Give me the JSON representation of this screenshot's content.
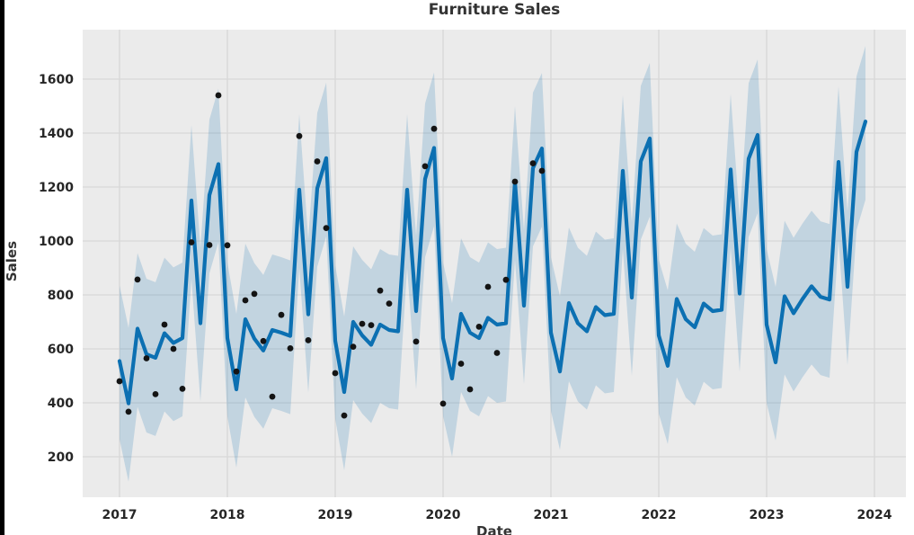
{
  "page": {
    "background": "#ffffff",
    "left_edge_bar_color": "#000000"
  },
  "chart_data": {
    "type": "line",
    "title": "Furniture Sales",
    "xlabel": "Date",
    "ylabel": "Sales",
    "x_tick_labels": [
      "2017",
      "2018",
      "2019",
      "2020",
      "2021",
      "2022",
      "2023",
      "2024"
    ],
    "y_tick_values": [
      200,
      400,
      600,
      800,
      1000,
      1200,
      1400,
      1600
    ],
    "ylim": [
      50,
      1780
    ],
    "grid": true,
    "legend": false,
    "plot_bg_color": "#ebebeb",
    "grid_color": "#d8d8d8",
    "x_start_month": "2017-01",
    "x_step": "1 month",
    "series": [
      {
        "name": "uncertainty-band",
        "type": "band",
        "fill_color": "rgba(12,112,178,0.18)",
        "upper": [
          835,
          678,
          955,
          860,
          847,
          938,
          902,
          920,
          1430,
          975,
          1450,
          1565,
          920,
          730,
          990,
          918,
          874,
          950,
          940,
          928,
          1470,
          1008,
          1475,
          1587,
          910,
          720,
          980,
          930,
          895,
          970,
          950,
          945,
          1470,
          1020,
          1510,
          1625,
          920,
          770,
          1010,
          940,
          920,
          995,
          970,
          975,
          1500,
          1040,
          1550,
          1623,
          940,
          796,
          1050,
          975,
          945,
          1035,
          1005,
          1010,
          1540,
          1070,
          1575,
          1660,
          930,
          817,
          1065,
          990,
          960,
          1048,
          1020,
          1025,
          1545,
          1085,
          1585,
          1673,
          970,
          830,
          1075,
          1012,
          1065,
          1112,
          1073,
          1063,
          1573,
          1110,
          1610,
          1723
        ],
        "lower": [
          265,
          108,
          385,
          290,
          277,
          368,
          332,
          350,
          860,
          405,
          880,
          995,
          350,
          160,
          420,
          348,
          304,
          380,
          370,
          358,
          900,
          438,
          905,
          1017,
          340,
          150,
          410,
          360,
          325,
          400,
          380,
          375,
          900,
          450,
          940,
          1055,
          350,
          200,
          440,
          370,
          350,
          425,
          400,
          405,
          930,
          470,
          980,
          1053,
          370,
          226,
          480,
          405,
          375,
          465,
          435,
          440,
          970,
          500,
          1005,
          1090,
          360,
          247,
          495,
          420,
          390,
          478,
          450,
          455,
          975,
          515,
          1015,
          1103,
          400,
          260,
          505,
          442,
          495,
          542,
          503,
          493,
          1003,
          540,
          1040,
          1153
        ]
      },
      {
        "name": "forecast-line",
        "type": "line",
        "color": "#0c70b2",
        "values": [
          555,
          398,
          675,
          580,
          567,
          658,
          622,
          640,
          1150,
          695,
          1170,
          1285,
          640,
          450,
          710,
          638,
          594,
          670,
          660,
          648,
          1190,
          728,
          1195,
          1307,
          630,
          440,
          700,
          650,
          615,
          690,
          670,
          665,
          1190,
          740,
          1230,
          1345,
          640,
          490,
          730,
          660,
          640,
          715,
          690,
          695,
          1220,
          760,
          1270,
          1343,
          660,
          516,
          770,
          695,
          665,
          755,
          725,
          730,
          1260,
          790,
          1295,
          1380,
          650,
          537,
          785,
          710,
          680,
          768,
          740,
          745,
          1265,
          805,
          1305,
          1393,
          690,
          550,
          795,
          732,
          785,
          832,
          793,
          783,
          1293,
          830,
          1330,
          1443
        ]
      },
      {
        "name": "observed-sales-dots",
        "type": "scatter",
        "color": "#141414",
        "values": [
          480,
          367,
          857,
          565,
          432,
          690,
          600,
          452,
          995,
          null,
          985,
          1540,
          984,
          516,
          780,
          804,
          629,
          423,
          726,
          602,
          1389,
          632,
          1295,
          1048,
          510,
          353,
          608,
          693,
          688,
          816,
          768,
          null,
          null,
          627,
          1277,
          1416,
          397,
          null,
          545,
          450,
          682,
          830,
          585,
          856,
          1220,
          null,
          1288,
          1260
        ]
      }
    ]
  }
}
